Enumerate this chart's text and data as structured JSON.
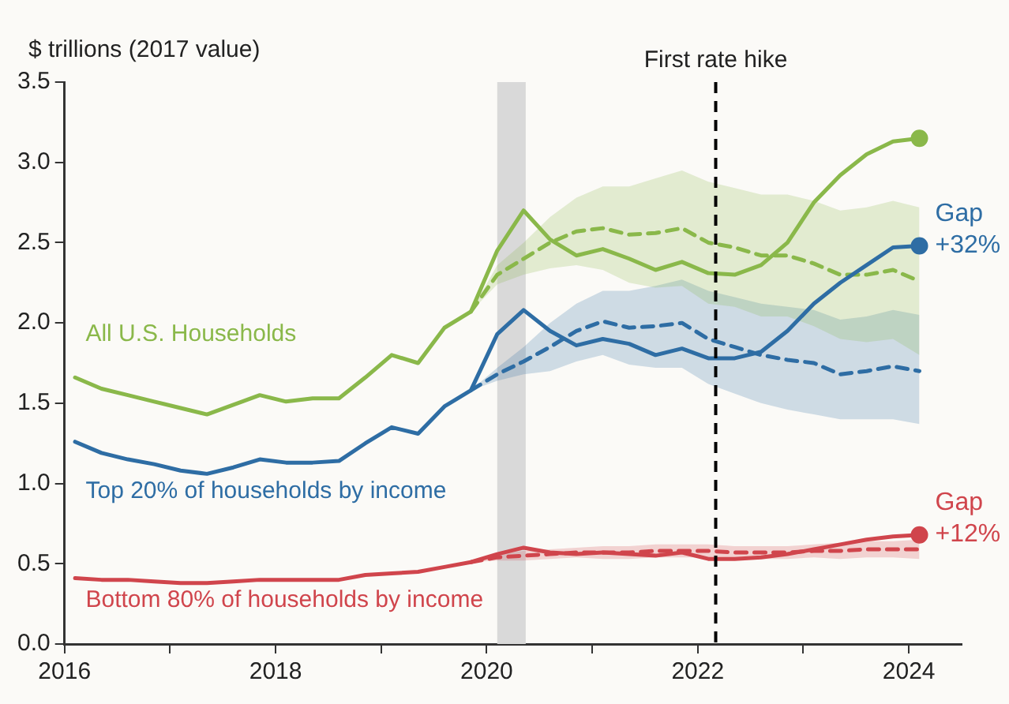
{
  "chart_data": {
    "type": "line",
    "ylabel": "$ trillions (2017 value)",
    "xlim": [
      2016,
      2024.5
    ],
    "ylim": [
      0,
      3.5
    ],
    "xticks": [
      2016,
      {
        "value": 2017,
        "label": null
      },
      2018,
      {
        "value": 2019,
        "label": null
      },
      2020,
      {
        "value": 2021,
        "label": null
      },
      2022,
      {
        "value": 2023,
        "label": null
      },
      2024
    ],
    "yticks": [
      {
        "value": 0,
        "label": "0.0"
      },
      {
        "value": 0.5,
        "label": "0.5"
      },
      {
        "value": 1,
        "label": "1.0"
      },
      {
        "value": 1.5,
        "label": "1.5"
      },
      {
        "value": 2,
        "label": "2.0"
      },
      {
        "value": 2.5,
        "label": "2.5"
      },
      {
        "value": 3,
        "label": "3.0"
      },
      {
        "value": 3.5,
        "label": "3.5"
      }
    ],
    "grid": false,
    "legend": false,
    "marker": "none",
    "series": [
      {
        "name": "All U.S. Households",
        "color": "#8ab84a",
        "line_style": "solid",
        "x": [
          2016.1,
          2016.35,
          2016.6,
          2016.85,
          2017.1,
          2017.35,
          2017.6,
          2017.85,
          2018.1,
          2018.35,
          2018.6,
          2018.85,
          2019.1,
          2019.35,
          2019.6,
          2019.85,
          2020.1,
          2020.35,
          2020.6,
          2020.85,
          2021.1,
          2021.35,
          2021.6,
          2021.85,
          2022.1,
          2022.35,
          2022.6,
          2022.85,
          2023.1,
          2023.35,
          2023.6,
          2023.85,
          2024.1
        ],
        "values": [
          1.66,
          1.59,
          1.55,
          1.51,
          1.47,
          1.43,
          1.49,
          1.55,
          1.51,
          1.53,
          1.53,
          1.66,
          1.8,
          1.75,
          1.97,
          2.07,
          2.45,
          2.7,
          2.52,
          2.42,
          2.46,
          2.4,
          2.33,
          2.38,
          2.31,
          2.3,
          2.36,
          2.5,
          2.75,
          2.92,
          3.05,
          3.13,
          3.15
        ]
      },
      {
        "name": "Top 20% of households by income",
        "color": "#2e6da4",
        "line_style": "solid",
        "x": [
          2016.1,
          2016.35,
          2016.6,
          2016.85,
          2017.1,
          2017.35,
          2017.6,
          2017.85,
          2018.1,
          2018.35,
          2018.6,
          2018.85,
          2019.1,
          2019.35,
          2019.6,
          2019.85,
          2020.1,
          2020.35,
          2020.6,
          2020.85,
          2021.1,
          2021.35,
          2021.6,
          2021.85,
          2022.1,
          2022.35,
          2022.6,
          2022.85,
          2023.1,
          2023.35,
          2023.6,
          2023.85,
          2024.1
        ],
        "values": [
          1.26,
          1.19,
          1.15,
          1.12,
          1.08,
          1.06,
          1.1,
          1.15,
          1.13,
          1.13,
          1.14,
          1.25,
          1.35,
          1.31,
          1.48,
          1.58,
          1.93,
          2.08,
          1.95,
          1.86,
          1.9,
          1.87,
          1.8,
          1.84,
          1.78,
          1.78,
          1.82,
          1.95,
          2.12,
          2.25,
          2.36,
          2.47,
          2.48
        ]
      },
      {
        "name": "Bottom 80% of households by income",
        "color": "#d0454c",
        "line_style": "solid",
        "x": [
          2016.1,
          2016.35,
          2016.6,
          2016.85,
          2017.1,
          2017.35,
          2017.6,
          2017.85,
          2018.1,
          2018.35,
          2018.6,
          2018.85,
          2019.1,
          2019.35,
          2019.6,
          2019.85,
          2020.1,
          2020.35,
          2020.6,
          2020.85,
          2021.1,
          2021.35,
          2021.6,
          2021.85,
          2022.1,
          2022.35,
          2022.6,
          2022.85,
          2023.1,
          2023.35,
          2023.6,
          2023.85,
          2024.1
        ],
        "values": [
          0.41,
          0.4,
          0.4,
          0.39,
          0.38,
          0.38,
          0.39,
          0.4,
          0.4,
          0.4,
          0.4,
          0.43,
          0.44,
          0.45,
          0.48,
          0.51,
          0.56,
          0.6,
          0.57,
          0.56,
          0.57,
          0.56,
          0.55,
          0.57,
          0.53,
          0.53,
          0.54,
          0.56,
          0.59,
          0.62,
          0.65,
          0.67,
          0.68
        ]
      },
      {
        "color": "#8ab84a",
        "line_style": "dashed",
        "x": [
          2019.85,
          2020.1,
          2020.35,
          2020.6,
          2020.85,
          2021.1,
          2021.35,
          2021.6,
          2021.85,
          2022.1,
          2022.35,
          2022.6,
          2022.85,
          2023.1,
          2023.35,
          2023.6,
          2023.85,
          2024.1
        ],
        "values": [
          2.07,
          2.3,
          2.4,
          2.5,
          2.57,
          2.59,
          2.55,
          2.56,
          2.59,
          2.5,
          2.47,
          2.42,
          2.42,
          2.37,
          2.3,
          2.3,
          2.33,
          2.26
        ],
        "lower": [
          2.07,
          2.24,
          2.3,
          2.34,
          2.36,
          2.33,
          2.25,
          2.22,
          2.23,
          2.12,
          2.1,
          2.04,
          2.04,
          1.98,
          1.9,
          1.88,
          1.9,
          1.8
        ],
        "upper": [
          2.07,
          2.36,
          2.5,
          2.66,
          2.78,
          2.85,
          2.85,
          2.9,
          2.95,
          2.88,
          2.84,
          2.8,
          2.8,
          2.76,
          2.7,
          2.72,
          2.76,
          2.72
        ]
      },
      {
        "color": "#2e6da4",
        "line_style": "dashed",
        "x": [
          2019.85,
          2020.1,
          2020.35,
          2020.6,
          2020.85,
          2021.1,
          2021.35,
          2021.6,
          2021.85,
          2022.1,
          2022.35,
          2022.6,
          2022.85,
          2023.1,
          2023.35,
          2023.6,
          2023.85,
          2024.1
        ],
        "values": [
          1.58,
          1.68,
          1.76,
          1.85,
          1.95,
          2.01,
          1.97,
          1.98,
          2,
          1.9,
          1.85,
          1.8,
          1.77,
          1.75,
          1.68,
          1.7,
          1.73,
          1.7
        ],
        "lower": [
          1.58,
          1.64,
          1.68,
          1.7,
          1.76,
          1.8,
          1.74,
          1.72,
          1.72,
          1.62,
          1.56,
          1.5,
          1.46,
          1.43,
          1.4,
          1.4,
          1.4,
          1.37
        ],
        "upper": [
          1.58,
          1.72,
          1.85,
          2,
          2.12,
          2.2,
          2.2,
          2.23,
          2.27,
          2.2,
          2.16,
          2.12,
          2.1,
          2.08,
          2.02,
          2.04,
          2.08,
          2.05
        ]
      },
      {
        "color": "#d0454c",
        "line_style": "dashed",
        "x": [
          2019.85,
          2020.1,
          2020.35,
          2020.6,
          2020.85,
          2021.1,
          2021.35,
          2021.6,
          2021.85,
          2022.1,
          2022.35,
          2022.6,
          2022.85,
          2023.1,
          2023.35,
          2023.6,
          2023.85,
          2024.1
        ],
        "values": [
          0.51,
          0.54,
          0.55,
          0.56,
          0.57,
          0.57,
          0.57,
          0.58,
          0.58,
          0.58,
          0.57,
          0.57,
          0.57,
          0.58,
          0.58,
          0.59,
          0.59,
          0.59
        ],
        "lower": [
          0.51,
          0.52,
          0.52,
          0.53,
          0.54,
          0.53,
          0.53,
          0.54,
          0.54,
          0.54,
          0.53,
          0.53,
          0.53,
          0.54,
          0.53,
          0.54,
          0.54,
          0.53
        ],
        "upper": [
          0.51,
          0.56,
          0.58,
          0.59,
          0.6,
          0.61,
          0.61,
          0.62,
          0.62,
          0.62,
          0.61,
          0.61,
          0.61,
          0.62,
          0.63,
          0.64,
          0.64,
          0.65
        ]
      },
      {
        "type": "scatter",
        "marker": "circle",
        "color": "#8ab84a",
        "x": [
          2024.1
        ],
        "values": [
          3.15
        ]
      },
      {
        "type": "scatter",
        "marker": "circle",
        "color": "#2e6da4",
        "x": [
          2024.1
        ],
        "values": [
          2.48
        ]
      },
      {
        "type": "scatter",
        "marker": "circle",
        "color": "#d0454c",
        "x": [
          2024.1
        ],
        "values": [
          0.68
        ]
      }
    ],
    "annotations": [
      {
        "text": "Gap +32%",
        "x": 2024.1,
        "y": 2.48
      },
      {
        "text": "Gap +12%",
        "x": 2024.1,
        "y": 0.68
      }
    ],
    "ref_lines": [
      {
        "axis": "x",
        "value": 2022.17,
        "label": "First rate hike",
        "color": "#000000",
        "line_style": "dashed"
      }
    ],
    "bands": [
      {
        "axis": "x",
        "from": 2020.1,
        "to": 2020.37,
        "color": "#d9d9d9"
      }
    ]
  }
}
